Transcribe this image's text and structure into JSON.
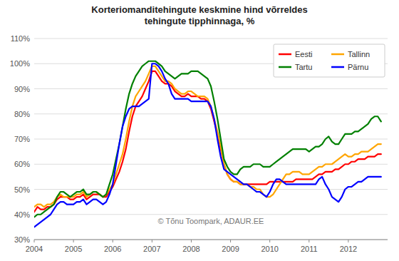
{
  "chart_data": {
    "type": "line",
    "title": "Korteriomanditehingute keskmine hind võrreldes\ntehingute tipphinnaga, %",
    "xlim": [
      2004.0,
      2013.0
    ],
    "xticks": [
      2004,
      2005,
      2006,
      2007,
      2008,
      2009,
      2010,
      2011,
      2012
    ],
    "ylim": [
      0.3,
      1.1
    ],
    "yticks": [
      {
        "value": 0.3,
        "label": "30%"
      },
      {
        "value": 0.4,
        "label": "40%"
      },
      {
        "value": 0.5,
        "label": "50%"
      },
      {
        "value": 0.6,
        "label": "60%"
      },
      {
        "value": 0.7,
        "label": "70%"
      },
      {
        "value": 0.8,
        "label": "80%"
      },
      {
        "value": 0.9,
        "label": "90%"
      },
      {
        "value": 1.0,
        "label": "100%"
      },
      {
        "value": 1.1,
        "label": "110%"
      }
    ],
    "grid": true,
    "legend": "upper right",
    "annotations": [
      "© Tõnu Toompark, ADAUR.EE"
    ],
    "x": [
      2004.0,
      2004.083,
      2004.167,
      2004.25,
      2004.333,
      2004.417,
      2004.5,
      2004.583,
      2004.667,
      2004.75,
      2004.833,
      2004.917,
      2005.0,
      2005.083,
      2005.167,
      2005.25,
      2005.333,
      2005.417,
      2005.5,
      2005.583,
      2005.667,
      2005.75,
      2005.833,
      2005.917,
      2006.0,
      2006.083,
      2006.167,
      2006.25,
      2006.333,
      2006.417,
      2006.5,
      2006.583,
      2006.667,
      2006.75,
      2006.833,
      2006.917,
      2007.0,
      2007.083,
      2007.167,
      2007.25,
      2007.333,
      2007.417,
      2007.5,
      2007.583,
      2007.667,
      2007.75,
      2007.833,
      2007.917,
      2008.0,
      2008.083,
      2008.167,
      2008.25,
      2008.333,
      2008.417,
      2008.5,
      2008.583,
      2008.667,
      2008.75,
      2008.833,
      2008.917,
      2009.0,
      2009.083,
      2009.167,
      2009.25,
      2009.333,
      2009.417,
      2009.5,
      2009.583,
      2009.667,
      2009.75,
      2009.833,
      2009.917,
      2010.0,
      2010.083,
      2010.167,
      2010.25,
      2010.333,
      2010.417,
      2010.5,
      2010.583,
      2010.667,
      2010.75,
      2010.833,
      2010.917,
      2011.0,
      2011.083,
      2011.167,
      2011.25,
      2011.333,
      2011.417,
      2011.5,
      2011.583,
      2011.667,
      2011.75,
      2011.833,
      2011.917,
      2012.0,
      2012.083,
      2012.167,
      2012.25,
      2012.333,
      2012.417,
      2012.5,
      2012.583,
      2012.667,
      2012.75,
      2012.833
    ],
    "series": [
      {
        "name": "Eesti",
        "color": "#ff0000",
        "values": [
          0.41,
          0.43,
          0.42,
          0.42,
          0.43,
          0.43,
          0.44,
          0.46,
          0.47,
          0.47,
          0.47,
          0.46,
          0.46,
          0.47,
          0.47,
          0.48,
          0.46,
          0.47,
          0.48,
          0.48,
          0.48,
          0.47,
          0.47,
          0.49,
          0.51,
          0.54,
          0.57,
          0.61,
          0.66,
          0.73,
          0.79,
          0.83,
          0.85,
          0.87,
          0.9,
          0.93,
          0.97,
          0.97,
          0.95,
          0.93,
          0.92,
          0.92,
          0.91,
          0.89,
          0.88,
          0.87,
          0.87,
          0.88,
          0.87,
          0.87,
          0.87,
          0.86,
          0.86,
          0.85,
          0.82,
          0.77,
          0.72,
          0.66,
          0.6,
          0.56,
          0.54,
          0.53,
          0.53,
          0.52,
          0.52,
          0.52,
          0.52,
          0.52,
          0.52,
          0.52,
          0.52,
          0.52,
          0.53,
          0.53,
          0.53,
          0.53,
          0.53,
          0.53,
          0.53,
          0.53,
          0.54,
          0.54,
          0.54,
          0.54,
          0.54,
          0.54,
          0.55,
          0.56,
          0.56,
          0.57,
          0.57,
          0.57,
          0.58,
          0.58,
          0.59,
          0.6,
          0.6,
          0.61,
          0.61,
          0.62,
          0.62,
          0.62,
          0.63,
          0.63,
          0.63,
          0.64,
          0.64
        ]
      },
      {
        "name": "Tallinn",
        "color": "#ffa500",
        "values": [
          0.43,
          0.44,
          0.44,
          0.43,
          0.44,
          0.44,
          0.45,
          0.47,
          0.48,
          0.47,
          0.47,
          0.47,
          0.47,
          0.48,
          0.48,
          0.49,
          0.47,
          0.48,
          0.49,
          0.49,
          0.48,
          0.47,
          0.48,
          0.5,
          0.52,
          0.56,
          0.6,
          0.64,
          0.7,
          0.77,
          0.83,
          0.87,
          0.89,
          0.91,
          0.93,
          0.96,
          0.99,
          0.99,
          0.97,
          0.95,
          0.93,
          0.93,
          0.92,
          0.9,
          0.89,
          0.88,
          0.88,
          0.89,
          0.89,
          0.88,
          0.87,
          0.87,
          0.87,
          0.86,
          0.83,
          0.78,
          0.73,
          0.67,
          0.6,
          0.56,
          0.54,
          0.53,
          0.53,
          0.52,
          0.52,
          0.52,
          0.51,
          0.51,
          0.5,
          0.5,
          0.48,
          0.47,
          0.47,
          0.48,
          0.5,
          0.52,
          0.54,
          0.56,
          0.56,
          0.57,
          0.57,
          0.57,
          0.56,
          0.56,
          0.56,
          0.57,
          0.58,
          0.59,
          0.59,
          0.6,
          0.6,
          0.6,
          0.61,
          0.62,
          0.63,
          0.64,
          0.63,
          0.63,
          0.64,
          0.64,
          0.65,
          0.65,
          0.65,
          0.66,
          0.67,
          0.68,
          0.68
        ]
      },
      {
        "name": "Tartu",
        "color": "#008000",
        "values": [
          0.39,
          0.4,
          0.4,
          0.41,
          0.42,
          0.43,
          0.44,
          0.47,
          0.49,
          0.49,
          0.48,
          0.47,
          0.48,
          0.49,
          0.49,
          0.5,
          0.48,
          0.48,
          0.49,
          0.49,
          0.48,
          0.47,
          0.48,
          0.52,
          0.56,
          0.62,
          0.68,
          0.75,
          0.82,
          0.88,
          0.92,
          0.95,
          0.97,
          0.99,
          1.0,
          1.01,
          1.01,
          1.01,
          1.0,
          0.99,
          0.97,
          0.96,
          0.95,
          0.94,
          0.95,
          0.96,
          0.96,
          0.96,
          0.97,
          0.97,
          0.97,
          0.96,
          0.95,
          0.94,
          0.91,
          0.85,
          0.78,
          0.7,
          0.62,
          0.59,
          0.57,
          0.56,
          0.56,
          0.58,
          0.59,
          0.59,
          0.59,
          0.6,
          0.6,
          0.6,
          0.59,
          0.59,
          0.59,
          0.6,
          0.61,
          0.62,
          0.63,
          0.64,
          0.65,
          0.66,
          0.66,
          0.66,
          0.66,
          0.66,
          0.65,
          0.66,
          0.67,
          0.67,
          0.68,
          0.7,
          0.71,
          0.69,
          0.68,
          0.68,
          0.7,
          0.72,
          0.72,
          0.72,
          0.73,
          0.73,
          0.74,
          0.75,
          0.76,
          0.78,
          0.79,
          0.79,
          0.77
        ]
      },
      {
        "name": "Pärnu",
        "color": "#0000ff",
        "values": [
          0.35,
          0.36,
          0.37,
          0.38,
          0.39,
          0.4,
          0.42,
          0.44,
          0.45,
          0.45,
          0.44,
          0.44,
          0.44,
          0.45,
          0.45,
          0.46,
          0.44,
          0.45,
          0.46,
          0.46,
          0.45,
          0.44,
          0.45,
          0.48,
          0.52,
          0.6,
          0.68,
          0.75,
          0.79,
          0.82,
          0.83,
          0.83,
          0.83,
          0.84,
          0.85,
          0.86,
          1.0,
          1.0,
          0.99,
          0.97,
          0.94,
          0.92,
          0.88,
          0.86,
          0.86,
          0.86,
          0.86,
          0.86,
          0.85,
          0.85,
          0.85,
          0.85,
          0.85,
          0.85,
          0.83,
          0.78,
          0.7,
          0.63,
          0.58,
          0.57,
          0.56,
          0.55,
          0.54,
          0.53,
          0.52,
          0.52,
          0.51,
          0.5,
          0.49,
          0.49,
          0.48,
          0.47,
          0.49,
          0.52,
          0.54,
          0.54,
          0.53,
          0.52,
          0.52,
          0.52,
          0.52,
          0.52,
          0.52,
          0.52,
          0.52,
          0.52,
          0.52,
          0.54,
          0.55,
          0.52,
          0.5,
          0.47,
          0.46,
          0.45,
          0.47,
          0.5,
          0.51,
          0.51,
          0.52,
          0.53,
          0.53,
          0.54,
          0.55,
          0.55,
          0.55,
          0.55,
          0.55
        ]
      }
    ]
  }
}
